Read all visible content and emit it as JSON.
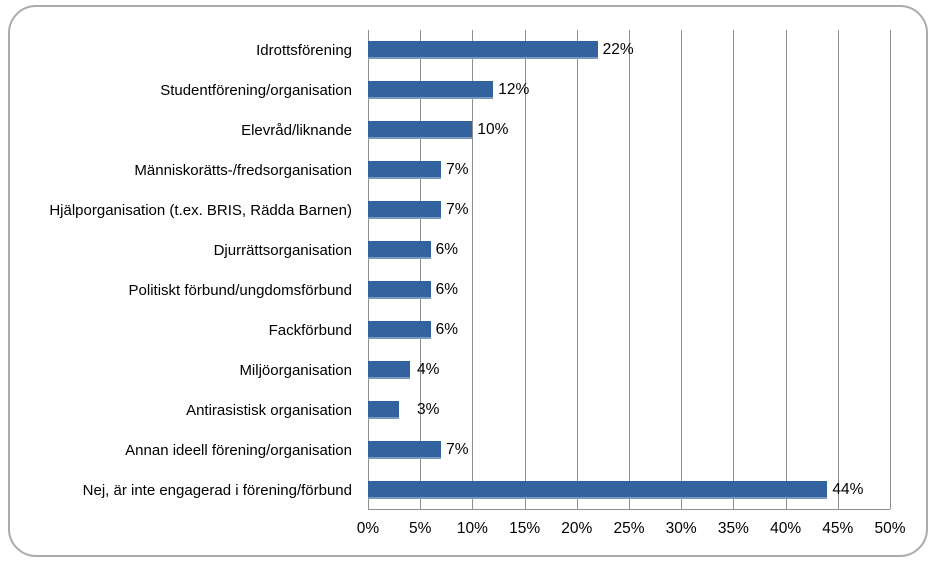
{
  "chart_data": {
    "type": "bar",
    "orientation": "horizontal",
    "title": "",
    "xlabel": "",
    "ylabel": "",
    "categories": [
      "Idrottsförening",
      "Studentförening/organisation",
      "Elevråd/liknande",
      "Människorätts-/fredsorganisation",
      "Hjälporganisation (t.ex. BRIS, Rädda Barnen)",
      "Djurrättsorganisation",
      "Politiskt förbund/ungdomsförbund",
      "Fackförbund",
      "Miljöorganisation",
      "Antirasistisk organisation",
      "Annan ideell förening/organisation",
      "Nej, är inte engagerad i förening/förbund"
    ],
    "values": [
      22,
      12,
      10,
      7,
      7,
      6,
      6,
      6,
      4,
      3,
      7,
      44
    ],
    "data_labels": [
      "22%",
      "12%",
      "10%",
      "7%",
      "7%",
      "6%",
      "6%",
      "6%",
      "4%",
      "3%",
      "7%",
      "44%"
    ],
    "xlim": [
      0,
      50
    ],
    "x_tick_values": [
      0,
      5,
      10,
      15,
      20,
      25,
      30,
      35,
      40,
      45,
      50
    ],
    "x_tick_labels": [
      "0%",
      "5%",
      "10%",
      "15%",
      "20%",
      "25%",
      "30%",
      "35%",
      "40%",
      "45%",
      "50%"
    ],
    "grid": true,
    "legend": false,
    "colors": {
      "bar": "#33639E",
      "gridline": "#8f8f8f",
      "axis_line": "#8f8f8f",
      "text": "#000000",
      "frame_border": "#ababab",
      "background": "#ffffff"
    }
  }
}
